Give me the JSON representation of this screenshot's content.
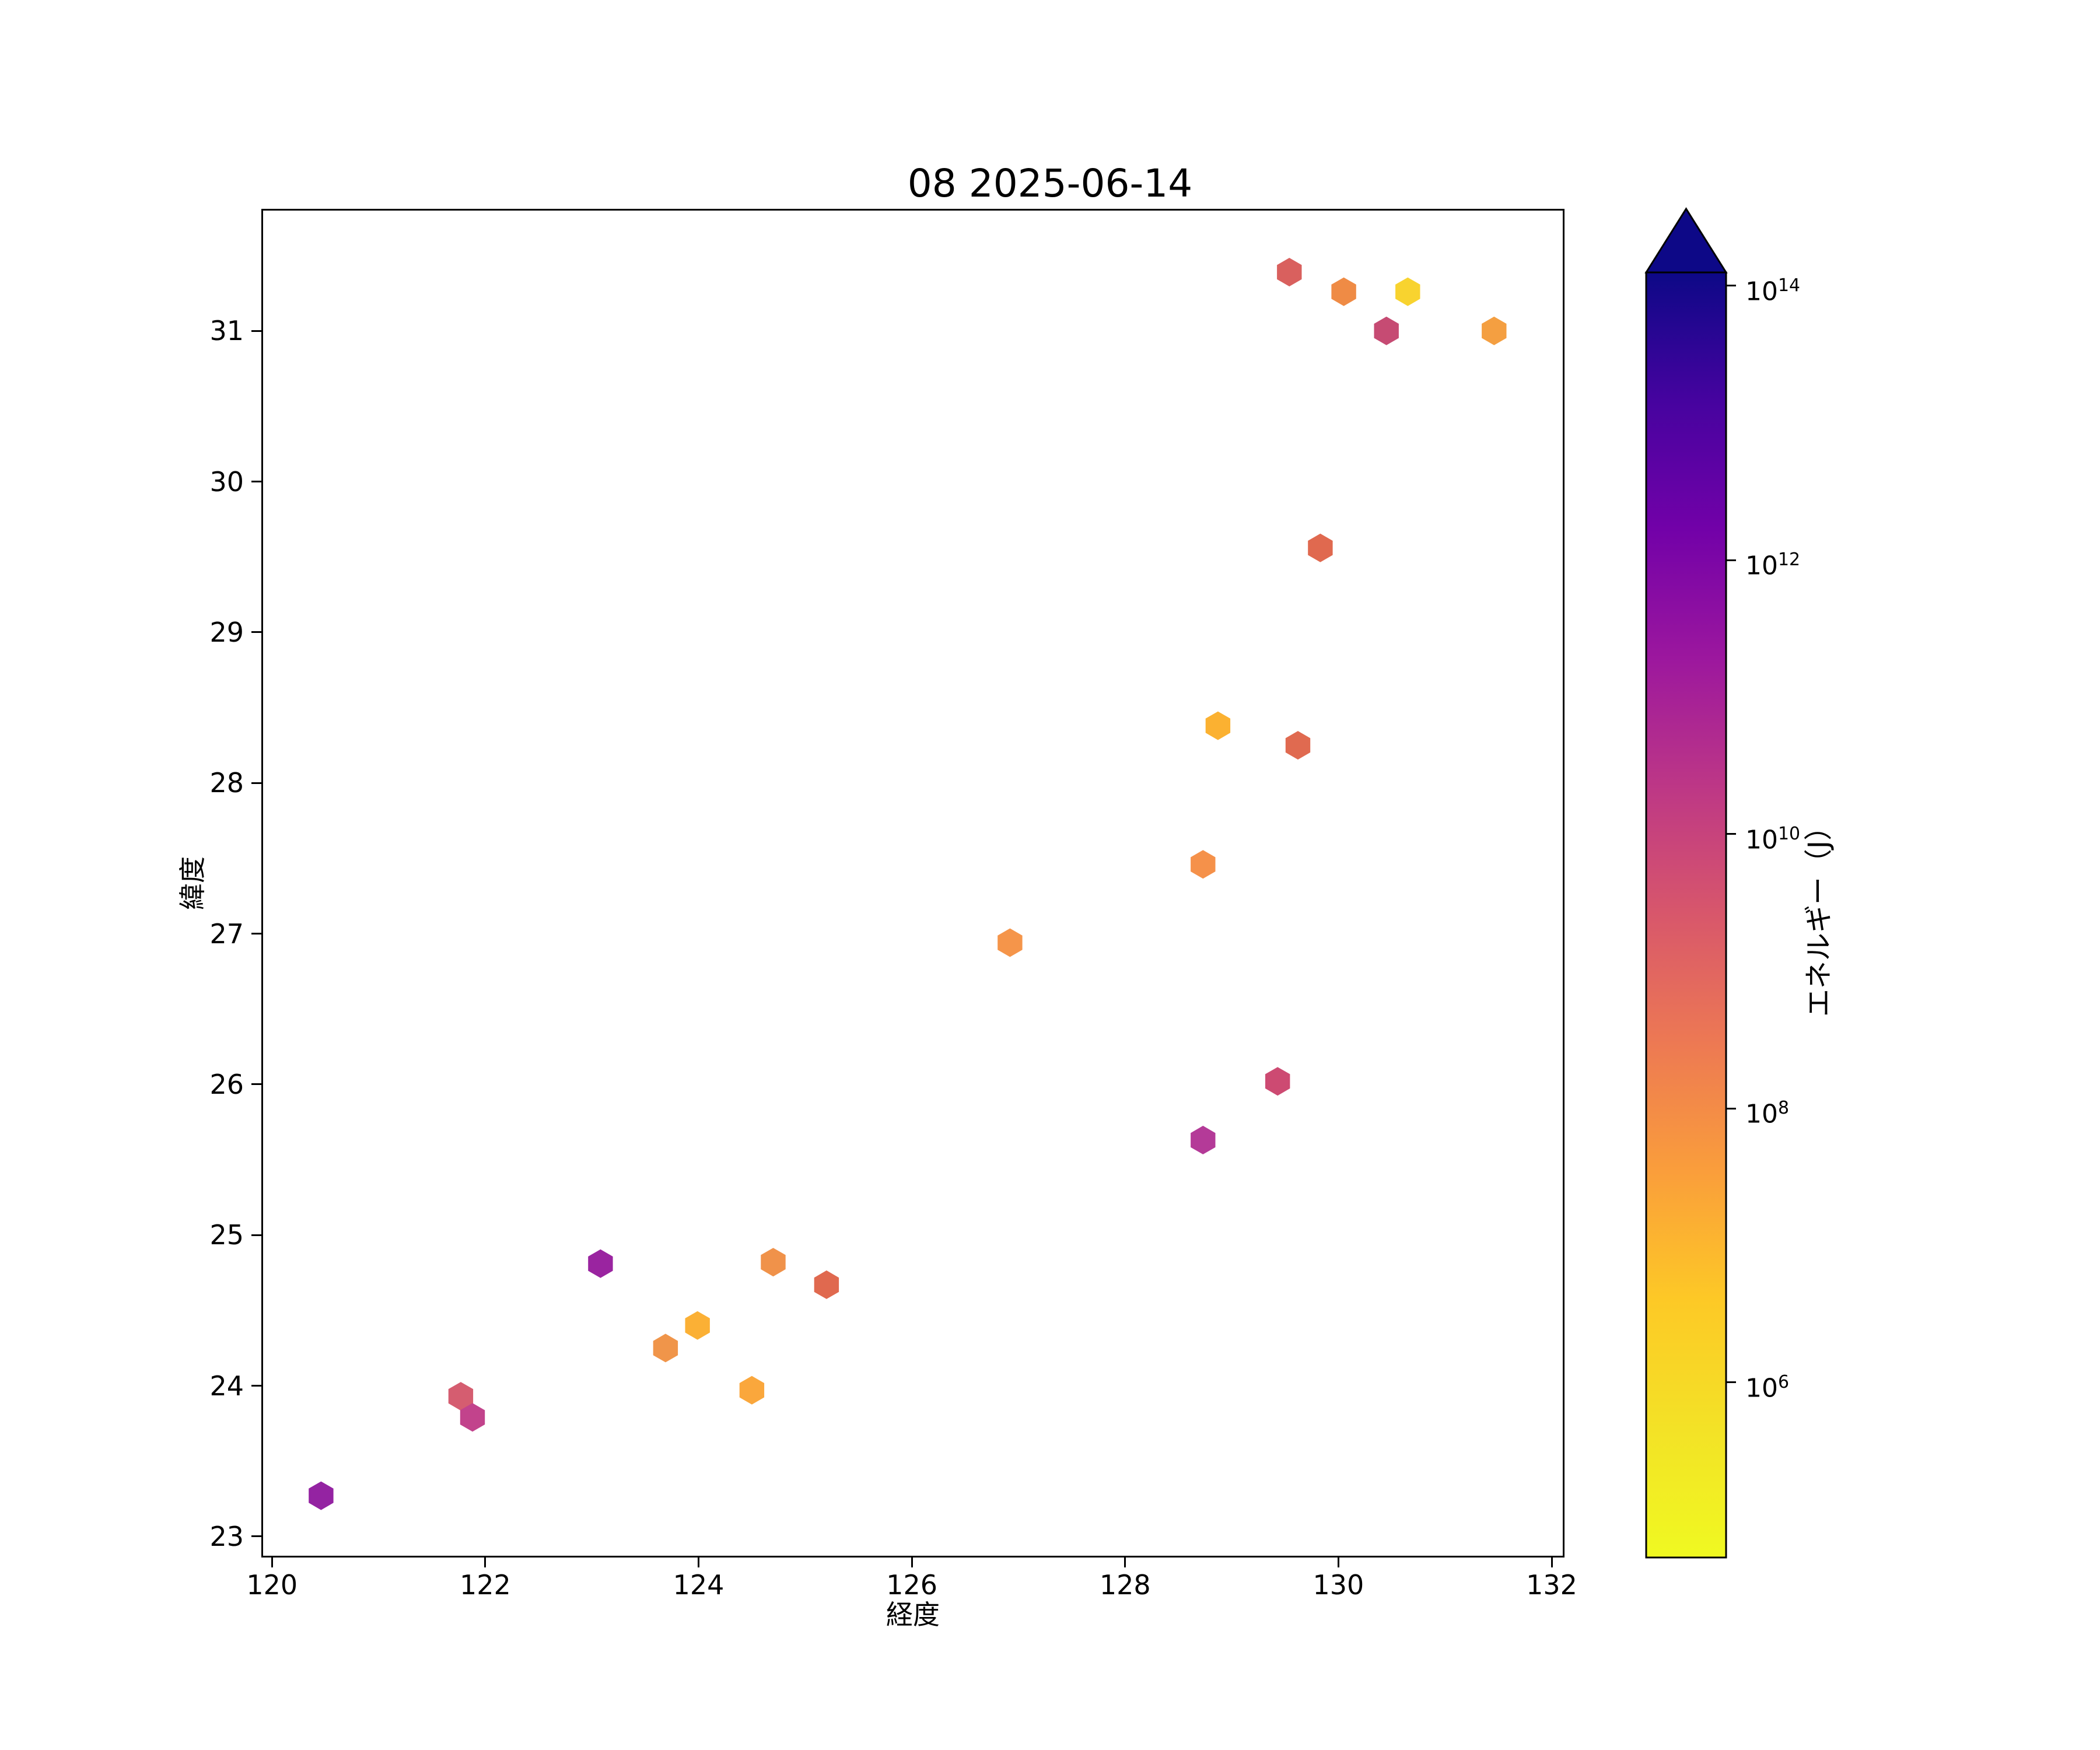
{
  "figure": {
    "title": "08 2025-06-14",
    "background": "#ffffff"
  },
  "chart_data": {
    "type": "scatter",
    "marker": "hexagon",
    "title": "08 2025-06-14",
    "xlabel": "経度",
    "ylabel": "緯度",
    "xlim": [
      119.9,
      132.12
    ],
    "ylim": [
      22.86,
      31.81
    ],
    "x_ticks": [
      120,
      122,
      124,
      126,
      128,
      130,
      132
    ],
    "y_ticks": [
      23,
      24,
      25,
      26,
      27,
      28,
      29,
      30,
      31
    ],
    "grid": false,
    "legend": "none",
    "points": [
      {
        "lon": 120.46,
        "lat": 23.27,
        "color": "#9423a2",
        "energy_j_approx": 200000000000.0
      },
      {
        "lon": 121.77,
        "lat": 23.93,
        "color": "#d55d70",
        "energy_j_approx": 700000000.0
      },
      {
        "lon": 121.88,
        "lat": 23.79,
        "color": "#c2438c",
        "energy_j_approx": 10000000000.0
      },
      {
        "lon": 123.08,
        "lat": 24.81,
        "color": "#9a24a0",
        "energy_j_approx": 200000000000.0
      },
      {
        "lon": 123.69,
        "lat": 24.25,
        "color": "#f0954a",
        "energy_j_approx": 10000000.0
      },
      {
        "lon": 123.99,
        "lat": 24.4,
        "color": "#fbb035",
        "energy_j_approx": 1500000.0
      },
      {
        "lon": 124.5,
        "lat": 23.97,
        "color": "#faa73c",
        "energy_j_approx": 2500000.0
      },
      {
        "lon": 124.7,
        "lat": 24.82,
        "color": "#f0924a",
        "energy_j_approx": 10000000.0
      },
      {
        "lon": 125.2,
        "lat": 24.67,
        "color": "#e0694f",
        "energy_j_approx": 150000000.0
      },
      {
        "lon": 126.92,
        "lat": 26.94,
        "color": "#f5954a",
        "energy_j_approx": 10000000.0
      },
      {
        "lon": 128.73,
        "lat": 27.46,
        "color": "#f5914a",
        "energy_j_approx": 10000000.0
      },
      {
        "lon": 128.73,
        "lat": 25.63,
        "color": "#b43a98",
        "energy_j_approx": 30000000000.0
      },
      {
        "lon": 128.87,
        "lat": 28.38,
        "color": "#fbb131",
        "energy_j_approx": 1500000.0
      },
      {
        "lon": 129.43,
        "lat": 26.02,
        "color": "#cd4a72",
        "energy_j_approx": 2000000000.0
      },
      {
        "lon": 129.54,
        "lat": 31.39,
        "color": "#d9605e",
        "energy_j_approx": 400000000.0
      },
      {
        "lon": 129.62,
        "lat": 28.25,
        "color": "#e06a50",
        "energy_j_approx": 150000000.0
      },
      {
        "lon": 129.83,
        "lat": 29.56,
        "color": "#e0694f",
        "energy_j_approx": 150000000.0
      },
      {
        "lon": 130.05,
        "lat": 31.26,
        "color": "#ef8b45",
        "energy_j_approx": 15000000.0
      },
      {
        "lon": 130.45,
        "lat": 31.0,
        "color": "#c64b73",
        "energy_j_approx": 3000000000.0
      },
      {
        "lon": 130.65,
        "lat": 31.26,
        "color": "#f8d32f",
        "energy_j_approx": 250000.0
      },
      {
        "lon": 131.46,
        "lat": 31.0,
        "color": "#f49f41",
        "energy_j_approx": 6000000.0
      }
    ],
    "colorbar": {
      "label": "エネルギー（J）",
      "scale": "log",
      "extend": "max",
      "colormap": "plasma_r",
      "vmin_approx": 50000.0,
      "vmax_approx": 130000000000000.0,
      "arrow_color": "#0d0887",
      "ticks": [
        {
          "base": "10",
          "exp": "14",
          "frac": 0.0104
        },
        {
          "base": "10",
          "exp": "12",
          "frac": 0.2238
        },
        {
          "base": "10",
          "exp": "10",
          "frac": 0.4371
        },
        {
          "base": "10",
          "exp": "8",
          "frac": 0.6505
        },
        {
          "base": "10",
          "exp": "6",
          "frac": 0.8638
        }
      ],
      "gradient_stops": [
        [
          0.0,
          "#0d0887"
        ],
        [
          0.1,
          "#46039f"
        ],
        [
          0.2,
          "#7201a8"
        ],
        [
          0.3,
          "#9c179e"
        ],
        [
          0.4,
          "#bd3786"
        ],
        [
          0.5,
          "#d8576b"
        ],
        [
          0.6,
          "#ed7953"
        ],
        [
          0.7,
          "#fa9e3b"
        ],
        [
          0.8,
          "#fdc926"
        ],
        [
          0.9,
          "#f3e226"
        ],
        [
          1.0,
          "#f0f921"
        ]
      ]
    }
  }
}
